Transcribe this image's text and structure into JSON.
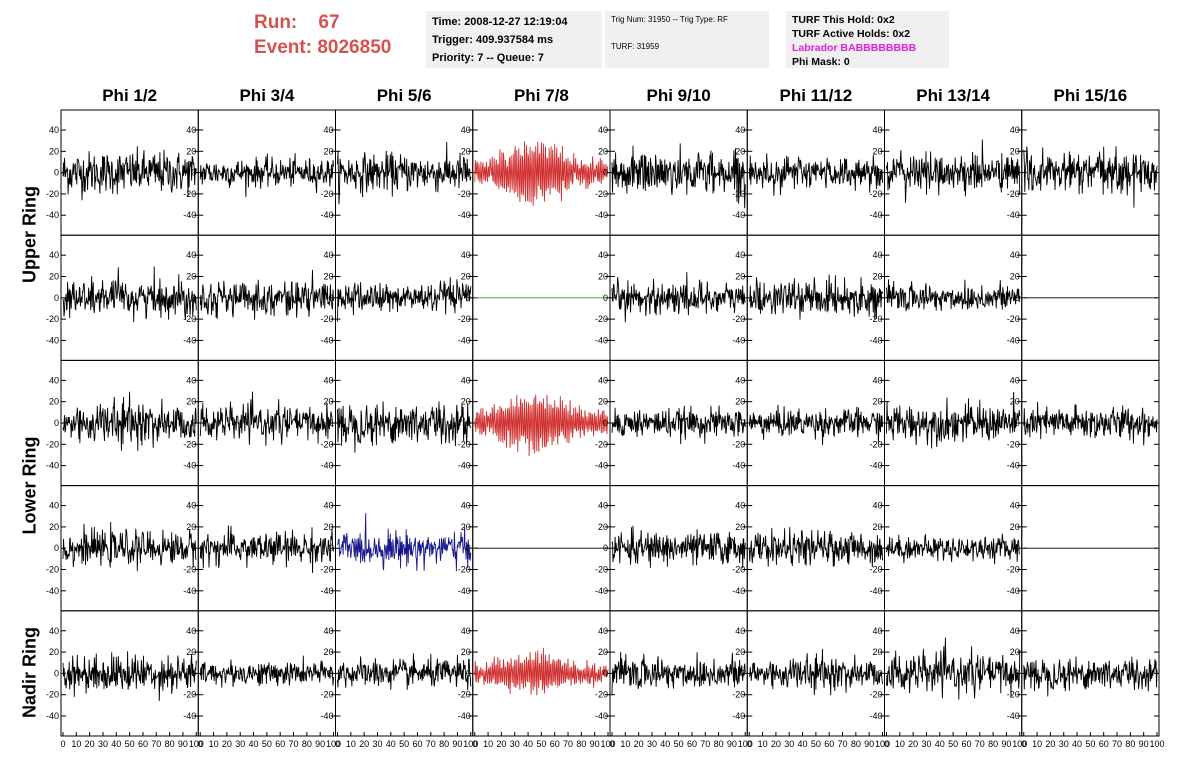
{
  "header": {
    "run_label": "Run:",
    "run_value": "67",
    "event_label": "Event:",
    "event_value": "8026850"
  },
  "info_box_1": {
    "time": "Time: 2008-12-27 12:19:04",
    "trigger": "Trigger: 409.937584 ms",
    "priority": "Priority: 7 -- Queue: 7"
  },
  "info_box_2": {
    "trig": "Trig Num: 31950 -- Trig Type: RF",
    "turf": "TURF: 31959"
  },
  "info_box_3": {
    "this_hold": "TURF This Hold: 0x2",
    "active_holds": "TURF Active Holds: 0x2",
    "labrador": "Labrador BABBBBBBBB",
    "phi_mask": "Phi Mask: 0"
  },
  "colors": {
    "title_red": "#d4524f",
    "trace_black": "#000000",
    "trace_red": "#d03030",
    "trace_blue": "#1a1a8c",
    "trace_green": "#2ca02c",
    "labrador_magenta": "#e020e0",
    "info_bg": "#f0f0f0"
  },
  "phi_headers": [
    "Phi 1/2",
    "Phi 3/4",
    "Phi 5/6",
    "Phi 7/8",
    "Phi 9/10",
    "Phi 11/12",
    "Phi 13/14",
    "Phi 15/16"
  ],
  "ring_labels": [
    "Upper Ring",
    "Lower Ring",
    "Nadir Ring"
  ],
  "chart_data": {
    "type": "line",
    "description_grid": "5 rows x 8 columns of waveform panels",
    "ylim": [
      -55,
      55
    ],
    "xlim": [
      0,
      100
    ],
    "yticks": [
      -40,
      -20,
      0,
      20,
      40
    ],
    "xticks": [
      0,
      10,
      20,
      30,
      40,
      50,
      60,
      70,
      80,
      90,
      100
    ],
    "xtick_labels": [
      "0",
      "10",
      "20",
      "30",
      "40",
      "50",
      "60",
      "70",
      "80",
      "90",
      "100"
    ],
    "rows": [
      {
        "ring": "Upper Ring",
        "traces": [
          {
            "style": "noise",
            "amp": 18,
            "color": "trace_black"
          },
          {
            "style": "noise",
            "amp": 12,
            "color": "trace_black"
          },
          {
            "style": "noise",
            "amp": 16,
            "color": "trace_black"
          },
          {
            "style": "pulse",
            "amp": 22,
            "color": "trace_red"
          },
          {
            "style": "noise",
            "amp": 18,
            "color": "trace_black"
          },
          {
            "style": "noise",
            "amp": 14,
            "color": "trace_black"
          },
          {
            "style": "noise",
            "amp": 16,
            "color": "trace_black"
          },
          {
            "style": "noise",
            "amp": 18,
            "color": "trace_black"
          }
        ]
      },
      {
        "ring": "Upper Ring",
        "traces": [
          {
            "style": "noise",
            "amp": 16,
            "color": "trace_black"
          },
          {
            "style": "noise",
            "amp": 14,
            "color": "trace_black"
          },
          {
            "style": "noise",
            "amp": 13,
            "color": "trace_black"
          },
          {
            "style": "flat",
            "amp": 0,
            "color": "trace_green"
          },
          {
            "style": "noise",
            "amp": 14,
            "color": "trace_black"
          },
          {
            "style": "noise",
            "amp": 14,
            "color": "trace_black"
          },
          {
            "style": "noise",
            "amp": 12,
            "color": "trace_black"
          },
          {
            "style": "flat",
            "amp": 0,
            "color": "trace_black"
          }
        ]
      },
      {
        "ring": "Lower Ring",
        "traces": [
          {
            "style": "noise",
            "amp": 18,
            "color": "trace_black"
          },
          {
            "style": "noise",
            "amp": 14,
            "color": "trace_black"
          },
          {
            "style": "noise",
            "amp": 18,
            "color": "trace_black"
          },
          {
            "style": "pulse",
            "amp": 22,
            "color": "trace_red"
          },
          {
            "style": "noise",
            "amp": 12,
            "color": "trace_black"
          },
          {
            "style": "noise",
            "amp": 12,
            "color": "trace_black"
          },
          {
            "style": "noise",
            "amp": 16,
            "color": "trace_black"
          },
          {
            "style": "noise",
            "amp": 14,
            "color": "trace_black"
          }
        ]
      },
      {
        "ring": "Lower Ring",
        "traces": [
          {
            "style": "noise",
            "amp": 14,
            "color": "trace_black"
          },
          {
            "style": "noise",
            "amp": 14,
            "color": "trace_black"
          },
          {
            "style": "noise",
            "amp": 14,
            "color": "trace_blue"
          },
          {
            "style": "flat",
            "amp": 0,
            "color": "trace_black"
          },
          {
            "style": "noise",
            "amp": 14,
            "color": "trace_black"
          },
          {
            "style": "noise",
            "amp": 14,
            "color": "trace_black"
          },
          {
            "style": "noise",
            "amp": 10,
            "color": "trace_black"
          },
          {
            "style": "flat",
            "amp": 0,
            "color": "trace_black"
          }
        ]
      },
      {
        "ring": "Nadir Ring",
        "traces": [
          {
            "style": "noise",
            "amp": 16,
            "color": "trace_black"
          },
          {
            "style": "noise",
            "amp": 10,
            "color": "trace_black"
          },
          {
            "style": "noise",
            "amp": 12,
            "color": "trace_black"
          },
          {
            "style": "pulse",
            "amp": 16,
            "color": "trace_red"
          },
          {
            "style": "noise",
            "amp": 14,
            "color": "trace_black"
          },
          {
            "style": "noise",
            "amp": 14,
            "color": "trace_black"
          },
          {
            "style": "noise",
            "amp": 16,
            "color": "trace_black"
          },
          {
            "style": "noise",
            "amp": 14,
            "color": "trace_black"
          }
        ]
      }
    ]
  }
}
